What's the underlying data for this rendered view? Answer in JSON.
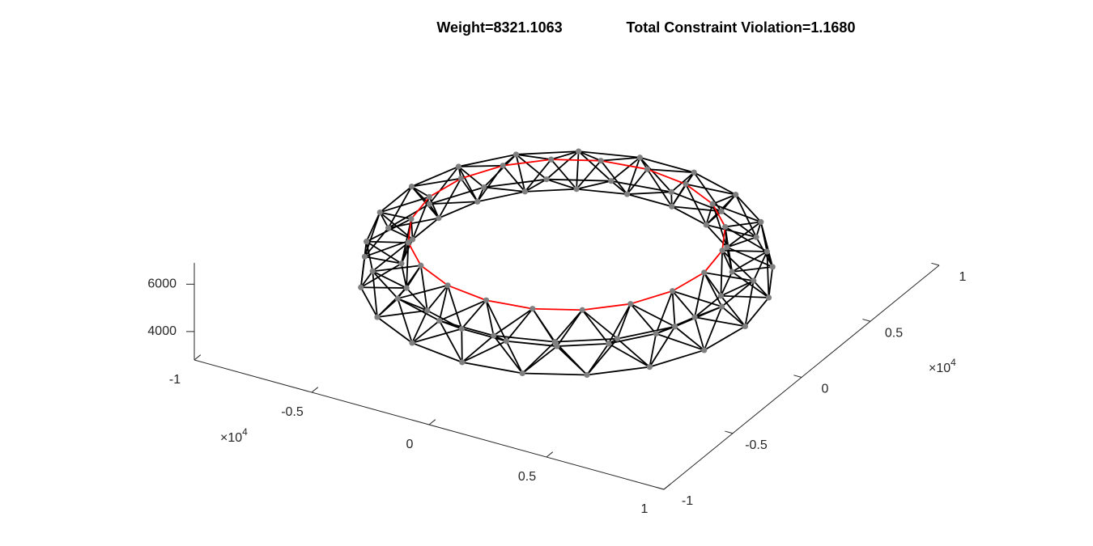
{
  "chart_data": {
    "type": "truss3d",
    "titles": [
      "Weight=8321.1063",
      "Total Constraint Violation=1.1680"
    ],
    "xlim": [
      -10000,
      10000
    ],
    "xticks": [
      {
        "value": -10000,
        "label": "-1"
      },
      {
        "value": -5000,
        "label": "-0.5"
      },
      {
        "value": 0,
        "label": "0"
      },
      {
        "value": 5000,
        "label": "0.5"
      },
      {
        "value": 10000,
        "label": "1"
      }
    ],
    "x_multiplier": {
      "base": "×10",
      "exponent": "4"
    },
    "ylim": [
      -10000,
      10000
    ],
    "yticks": [
      {
        "value": -10000,
        "label": "-1"
      },
      {
        "value": -5000,
        "label": "-0.5"
      },
      {
        "value": 0,
        "label": "0"
      },
      {
        "value": 5000,
        "label": "0.5"
      },
      {
        "value": 10000,
        "label": "1"
      }
    ],
    "y_multiplier": {
      "base": "×10",
      "exponent": "4"
    },
    "zlim": [
      2800,
      6900
    ],
    "zticks": [
      4000,
      6000
    ],
    "member_color": "#000000",
    "highlight_color": "#ff0000",
    "node_color": "#7f7f7f"
  }
}
